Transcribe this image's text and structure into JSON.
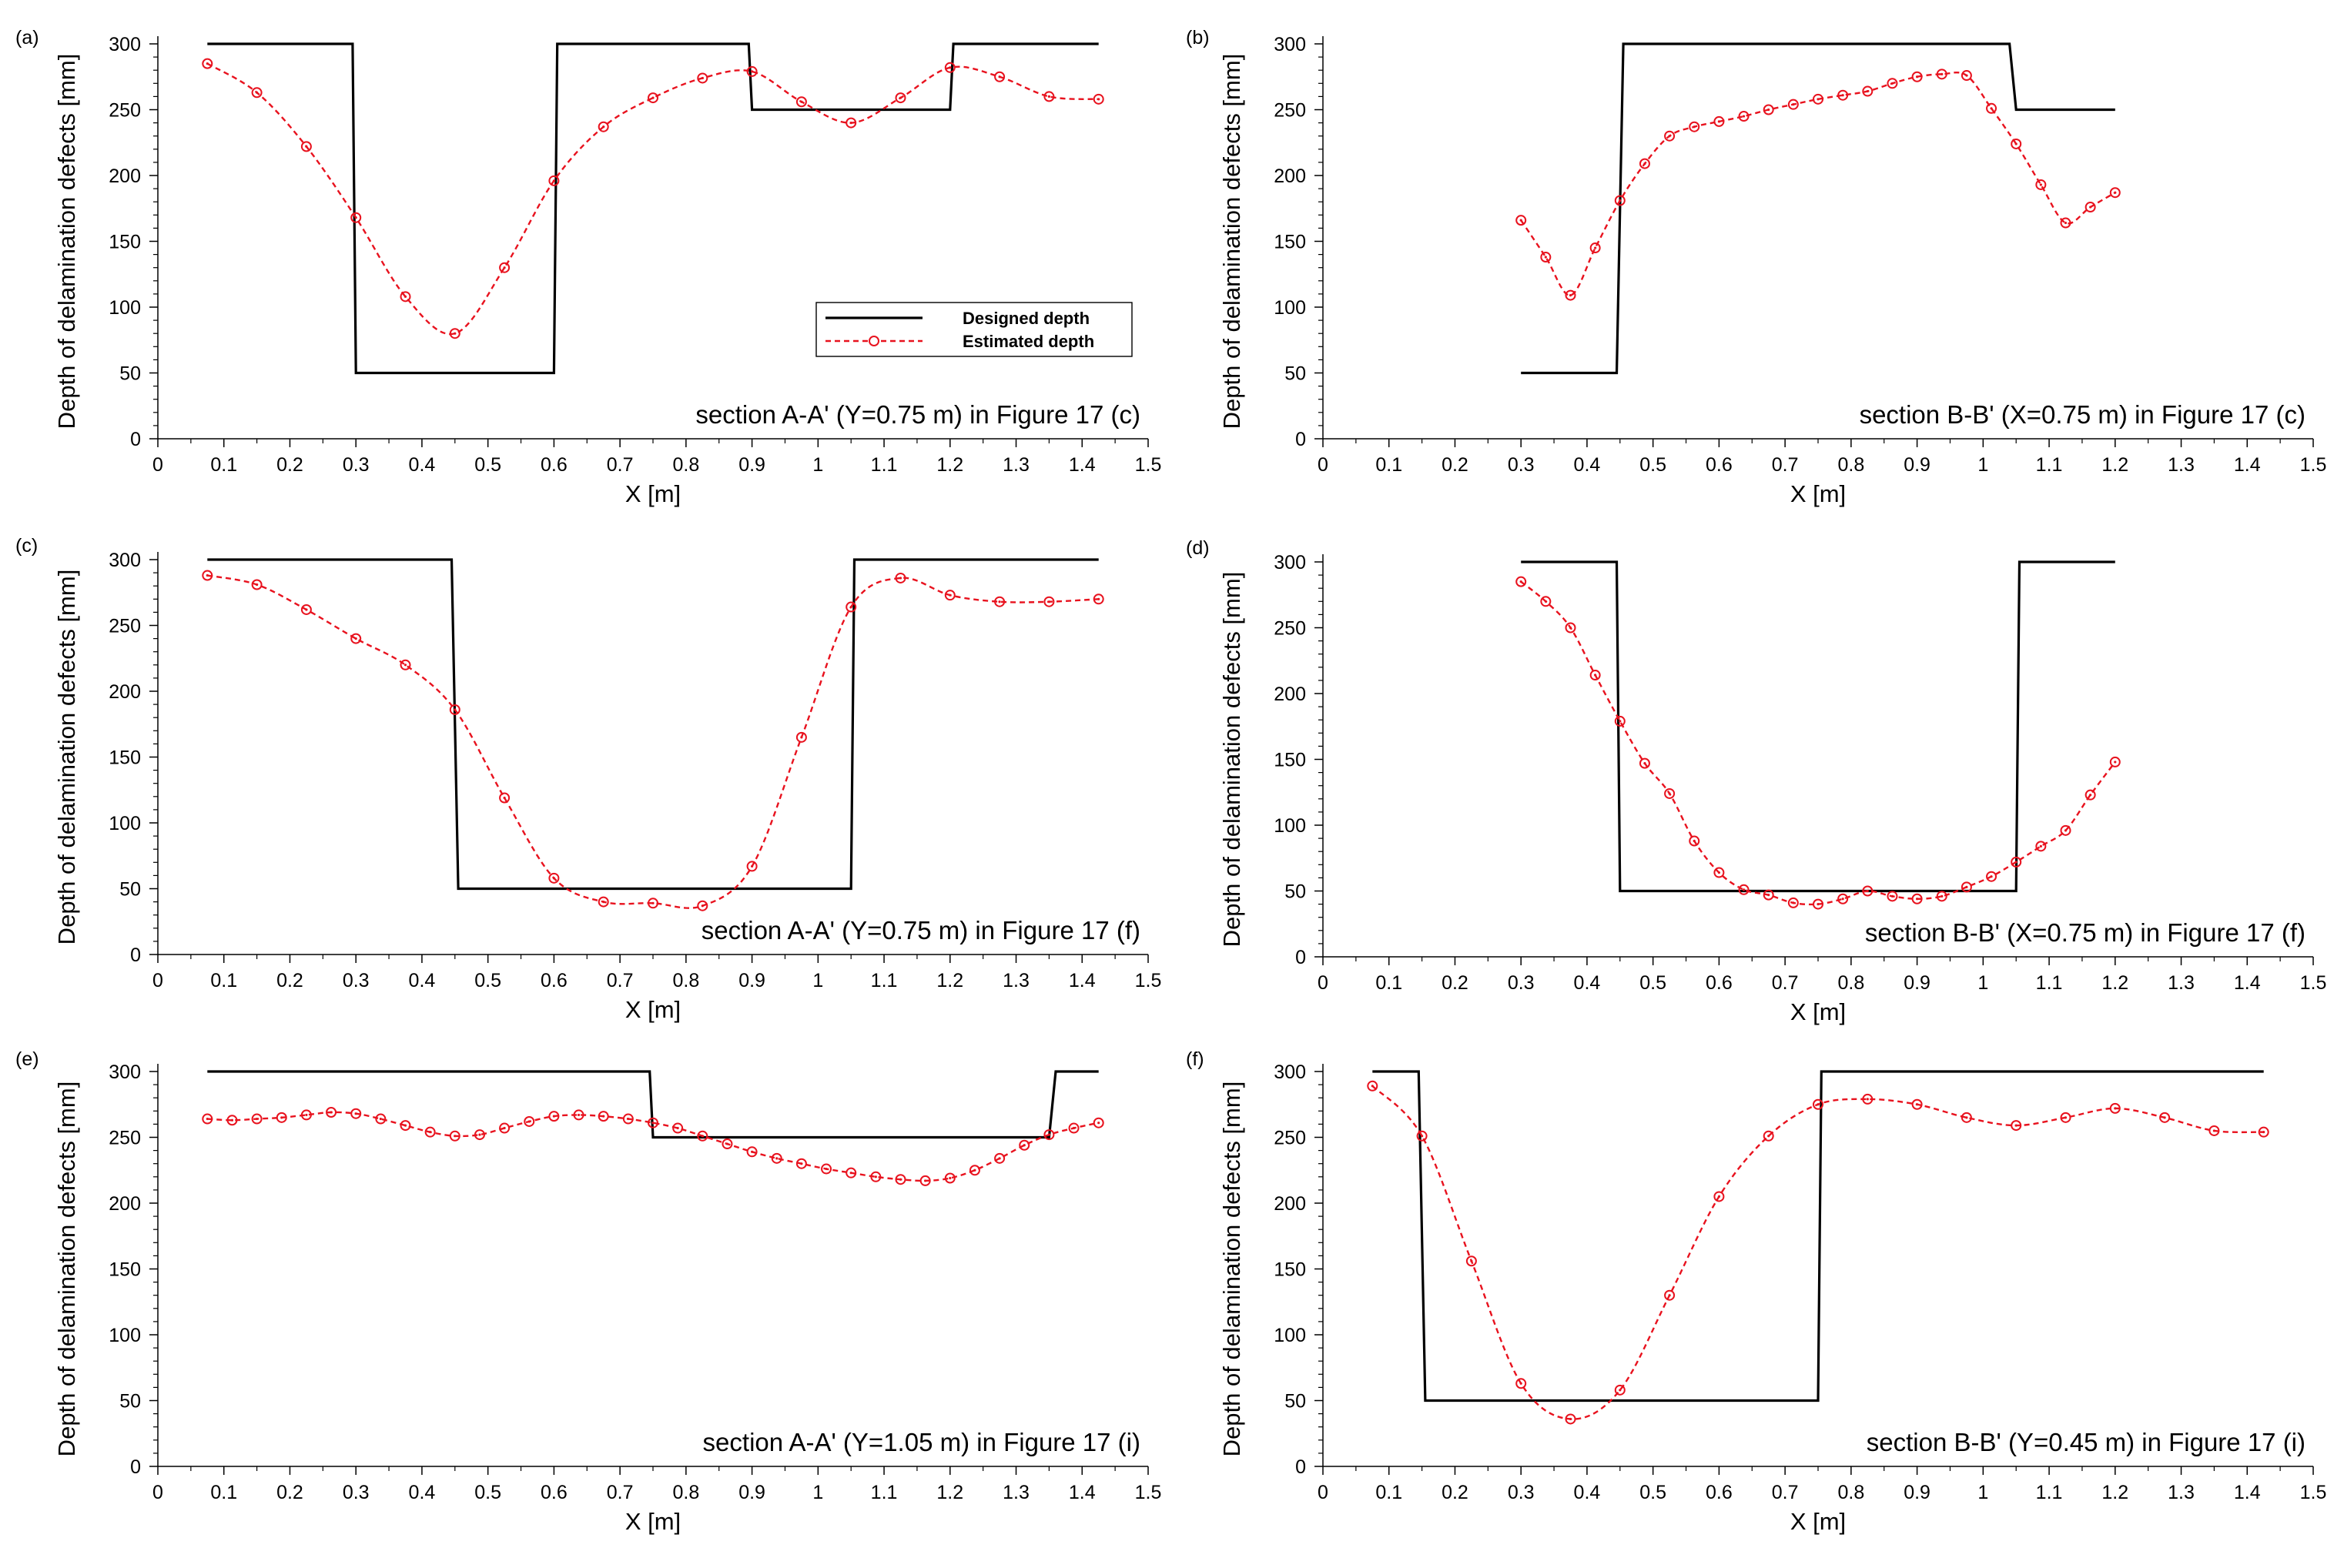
{
  "colors": {
    "designed": "#000000",
    "estimated": "#e8121e",
    "background": "#ffffff"
  },
  "legend": {
    "designed_label": "Designed depth",
    "estimated_label": "Estimated depth"
  },
  "chart_data": [
    {
      "type": "line",
      "panel_label": "(a)",
      "annotation": "section A-A' (Y=0.75 m) in Figure 17 (c)",
      "xlabel": "X [m]",
      "ylabel": "Depth of delamination defects [mm]",
      "xlim": [
        0,
        1.5
      ],
      "ylim": [
        0,
        300
      ],
      "x_ticks": [
        0,
        0.1,
        0.2,
        0.3,
        0.4,
        0.5,
        0.6,
        0.7,
        0.8,
        0.9,
        1,
        1.1,
        1.2,
        1.3,
        1.4,
        1.5
      ],
      "y_ticks": [
        0,
        50,
        100,
        150,
        200,
        250,
        300
      ],
      "legend_location": "center-right",
      "series": [
        {
          "name": "Designed depth",
          "style": "solid",
          "x": [
            0.075,
            0.295,
            0.3,
            0.6,
            0.605,
            0.895,
            0.9,
            1.2,
            1.205,
            1.425
          ],
          "y": [
            300,
            300,
            50,
            50,
            300,
            300,
            250,
            250,
            300,
            300
          ]
        },
        {
          "name": "Estimated depth",
          "style": "dashed-circle",
          "x": [
            0.075,
            0.15,
            0.225,
            0.3,
            0.375,
            0.45,
            0.525,
            0.6,
            0.675,
            0.75,
            0.825,
            0.9,
            0.975,
            1.05,
            1.125,
            1.2,
            1.275,
            1.35,
            1.425
          ],
          "y": [
            285,
            263,
            222,
            168,
            108,
            80,
            130,
            196,
            237,
            259,
            274,
            279,
            256,
            240,
            259,
            282,
            275,
            260,
            258
          ]
        }
      ]
    },
    {
      "type": "line",
      "panel_label": "(b)",
      "annotation": "section B-B' (X=0.75 m) in Figure 17 (c)",
      "xlabel": "X [m]",
      "ylabel": "Depth of delamination defects [mm]",
      "xlim": [
        0,
        1.5
      ],
      "ylim": [
        0,
        300
      ],
      "x_ticks": [
        0,
        0.1,
        0.2,
        0.3,
        0.4,
        0.5,
        0.6,
        0.7,
        0.8,
        0.9,
        1,
        1.1,
        1.2,
        1.3,
        1.4,
        1.5
      ],
      "y_ticks": [
        0,
        50,
        100,
        150,
        200,
        250,
        300
      ],
      "series": [
        {
          "name": "Designed depth",
          "style": "solid",
          "x": [
            0.3,
            0.445,
            0.455,
            1.04,
            1.05,
            1.2
          ],
          "y": [
            50,
            50,
            300,
            300,
            250,
            250
          ]
        },
        {
          "name": "Estimated depth",
          "style": "dashed-circle",
          "x": [
            0.3,
            0.3375,
            0.375,
            0.4125,
            0.45,
            0.4875,
            0.525,
            0.5625,
            0.6,
            0.6375,
            0.675,
            0.7125,
            0.75,
            0.7875,
            0.825,
            0.8625,
            0.9,
            0.9375,
            0.975,
            1.0125,
            1.05,
            1.0875,
            1.125,
            1.1625,
            1.2
          ],
          "y": [
            166,
            138,
            109,
            145,
            181,
            209,
            230,
            237,
            241,
            245,
            250,
            254,
            258,
            261,
            264,
            270,
            275,
            277,
            276,
            251,
            224,
            193,
            164,
            176,
            187
          ]
        }
      ]
    },
    {
      "type": "line",
      "panel_label": "(c)",
      "annotation": "section A-A' (Y=0.75 m) in Figure 17 (f)",
      "xlabel": "X [m]",
      "ylabel": "Depth of delamination defects [mm]",
      "xlim": [
        0,
        1.5
      ],
      "ylim": [
        0,
        300
      ],
      "x_ticks": [
        0,
        0.1,
        0.2,
        0.3,
        0.4,
        0.5,
        0.6,
        0.7,
        0.8,
        0.9,
        1,
        1.1,
        1.2,
        1.3,
        1.4,
        1.5
      ],
      "y_ticks": [
        0,
        50,
        100,
        150,
        200,
        250,
        300
      ],
      "series": [
        {
          "name": "Designed depth",
          "style": "solid",
          "x": [
            0.075,
            0.445,
            0.455,
            1.05,
            1.055,
            1.425
          ],
          "y": [
            300,
            300,
            50,
            50,
            300,
            300
          ]
        },
        {
          "name": "Estimated depth",
          "style": "dashed-circle",
          "x": [
            0.075,
            0.15,
            0.225,
            0.3,
            0.375,
            0.45,
            0.525,
            0.6,
            0.675,
            0.75,
            0.825,
            0.9,
            0.975,
            1.05,
            1.125,
            1.2,
            1.275,
            1.35,
            1.425
          ],
          "y": [
            288,
            281,
            262,
            240,
            220,
            186,
            119,
            58,
            40,
            39,
            37,
            67,
            165,
            264,
            286,
            273,
            268,
            268,
            270
          ]
        }
      ]
    },
    {
      "type": "line",
      "panel_label": "(d)",
      "annotation": "section B-B' (X=0.75 m) in Figure 17 (f)",
      "xlabel": "X [m]",
      "ylabel": "Depth of delamination defects [mm]",
      "xlim": [
        0,
        1.5
      ],
      "ylim": [
        0,
        300
      ],
      "x_ticks": [
        0,
        0.1,
        0.2,
        0.3,
        0.4,
        0.5,
        0.6,
        0.7,
        0.8,
        0.9,
        1,
        1.1,
        1.2,
        1.3,
        1.4,
        1.5
      ],
      "y_ticks": [
        0,
        50,
        100,
        150,
        200,
        250,
        300
      ],
      "series": [
        {
          "name": "Designed depth",
          "style": "solid",
          "x": [
            0.3,
            0.445,
            0.45,
            1.05,
            1.055,
            1.2
          ],
          "y": [
            300,
            300,
            50,
            50,
            300,
            300
          ]
        },
        {
          "name": "Estimated depth",
          "style": "dashed-circle",
          "x": [
            0.3,
            0.3375,
            0.375,
            0.4125,
            0.45,
            0.4875,
            0.525,
            0.5625,
            0.6,
            0.6375,
            0.675,
            0.7125,
            0.75,
            0.7875,
            0.825,
            0.8625,
            0.9,
            0.9375,
            0.975,
            1.0125,
            1.05,
            1.0875,
            1.125,
            1.1625,
            1.2
          ],
          "y": [
            285,
            270,
            250,
            214,
            179,
            147,
            124,
            88,
            64,
            51,
            47,
            41,
            40,
            44,
            50,
            46,
            44,
            46,
            53,
            61,
            72,
            84,
            96,
            123,
            148
          ]
        }
      ]
    },
    {
      "type": "line",
      "panel_label": "(e)",
      "annotation": "section A-A' (Y=1.05 m) in Figure 17 (i)",
      "xlabel": "X [m]",
      "ylabel": "Depth of delamination defects [mm]",
      "xlim": [
        0,
        1.5
      ],
      "ylim": [
        0,
        300
      ],
      "x_ticks": [
        0,
        0.1,
        0.2,
        0.3,
        0.4,
        0.5,
        0.6,
        0.7,
        0.8,
        0.9,
        1,
        1.1,
        1.2,
        1.3,
        1.4,
        1.5
      ],
      "y_ticks": [
        0,
        50,
        100,
        150,
        200,
        250,
        300
      ],
      "series": [
        {
          "name": "Designed depth",
          "style": "solid",
          "x": [
            0.075,
            0.745,
            0.75,
            1.35,
            1.36,
            1.425
          ],
          "y": [
            300,
            300,
            250,
            250,
            300,
            300
          ]
        },
        {
          "name": "Estimated depth",
          "style": "dashed-circle",
          "x": [
            0.075,
            0.1125,
            0.15,
            0.1875,
            0.225,
            0.2625,
            0.3,
            0.3375,
            0.375,
            0.4125,
            0.45,
            0.4875,
            0.525,
            0.5625,
            0.6,
            0.6375,
            0.675,
            0.7125,
            0.75,
            0.7875,
            0.825,
            0.8625,
            0.9,
            0.9375,
            0.975,
            1.0125,
            1.05,
            1.0875,
            1.125,
            1.1625,
            1.2,
            1.2375,
            1.275,
            1.3125,
            1.35,
            1.3875,
            1.425
          ],
          "y": [
            264,
            263,
            264,
            265,
            267,
            269,
            268,
            264,
            259,
            254,
            251,
            252,
            257,
            262,
            266,
            267,
            266,
            264,
            261,
            257,
            251,
            245,
            239,
            234,
            230,
            226,
            223,
            220,
            218,
            217,
            219,
            225,
            234,
            244,
            252,
            257,
            261
          ]
        }
      ]
    },
    {
      "type": "line",
      "panel_label": "(f)",
      "annotation": "section B-B' (Y=0.45 m) in Figure 17 (i)",
      "xlabel": "X [m]",
      "ylabel": "Depth of delamination defects [mm]",
      "xlim": [
        0,
        1.5
      ],
      "ylim": [
        0,
        300
      ],
      "x_ticks": [
        0,
        0.1,
        0.2,
        0.3,
        0.4,
        0.5,
        0.6,
        0.7,
        0.8,
        0.9,
        1,
        1.1,
        1.2,
        1.3,
        1.4,
        1.5
      ],
      "y_ticks": [
        0,
        50,
        100,
        150,
        200,
        250,
        300
      ],
      "series": [
        {
          "name": "Designed depth",
          "style": "solid",
          "x": [
            0.075,
            0.145,
            0.155,
            0.75,
            0.755,
            1.425
          ],
          "y": [
            300,
            300,
            50,
            50,
            300,
            300
          ]
        },
        {
          "name": "Estimated depth",
          "style": "dashed-circle",
          "x": [
            0.075,
            0.15,
            0.225,
            0.3,
            0.375,
            0.45,
            0.525,
            0.6,
            0.675,
            0.75,
            0.825,
            0.9,
            0.975,
            1.05,
            1.125,
            1.2,
            1.275,
            1.35,
            1.425
          ],
          "y": [
            289,
            251,
            156,
            63,
            36,
            58,
            130,
            205,
            251,
            275,
            279,
            275,
            265,
            259,
            265,
            272,
            265,
            255,
            254
          ]
        }
      ]
    }
  ]
}
